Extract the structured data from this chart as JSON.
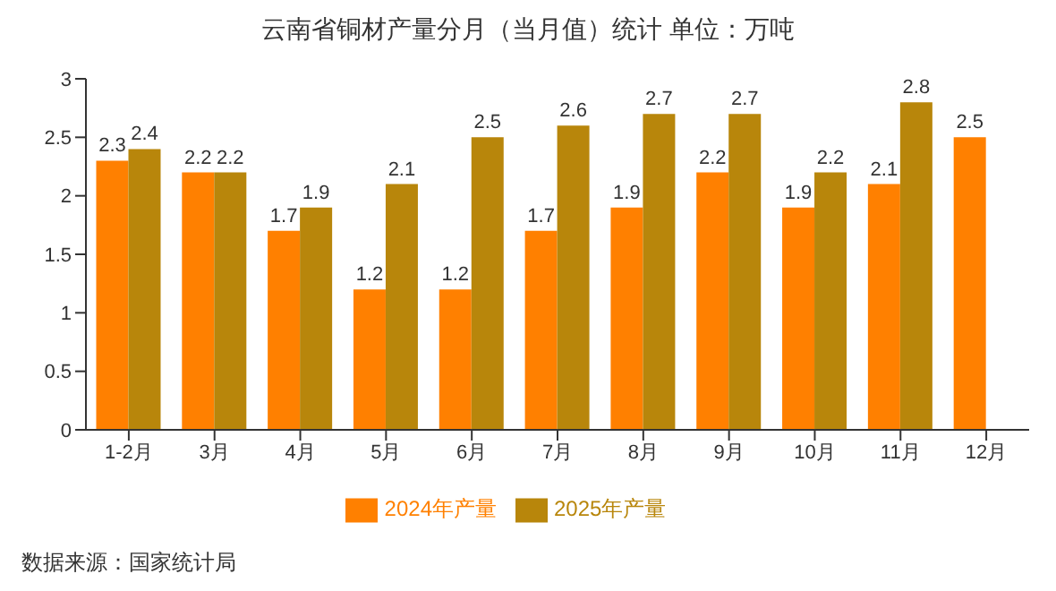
{
  "chart_data": {
    "type": "bar",
    "title": "云南省铜材产量分月（当月值）统计  单位：万吨",
    "categories": [
      "1-2月",
      "3月",
      "4月",
      "5月",
      "6月",
      "7月",
      "8月",
      "9月",
      "10月",
      "11月",
      "12月"
    ],
    "series": [
      {
        "name": "2024年产量",
        "color": "#ff8000",
        "values": [
          2.3,
          2.2,
          1.7,
          1.2,
          1.2,
          1.7,
          1.9,
          2.2,
          1.9,
          2.1,
          2.5
        ]
      },
      {
        "name": "2025年产量",
        "color": "#b8860b",
        "values": [
          2.4,
          2.2,
          1.9,
          2.1,
          2.5,
          2.6,
          2.7,
          2.7,
          2.2,
          2.8,
          null
        ]
      }
    ],
    "ylim": [
      0,
      3
    ],
    "yticks": [
      0,
      0.5,
      1,
      1.5,
      2,
      2.5,
      3
    ],
    "data_labels": true,
    "legend": "bottom",
    "annotations": [
      "数据来源：国家统计局"
    ]
  }
}
